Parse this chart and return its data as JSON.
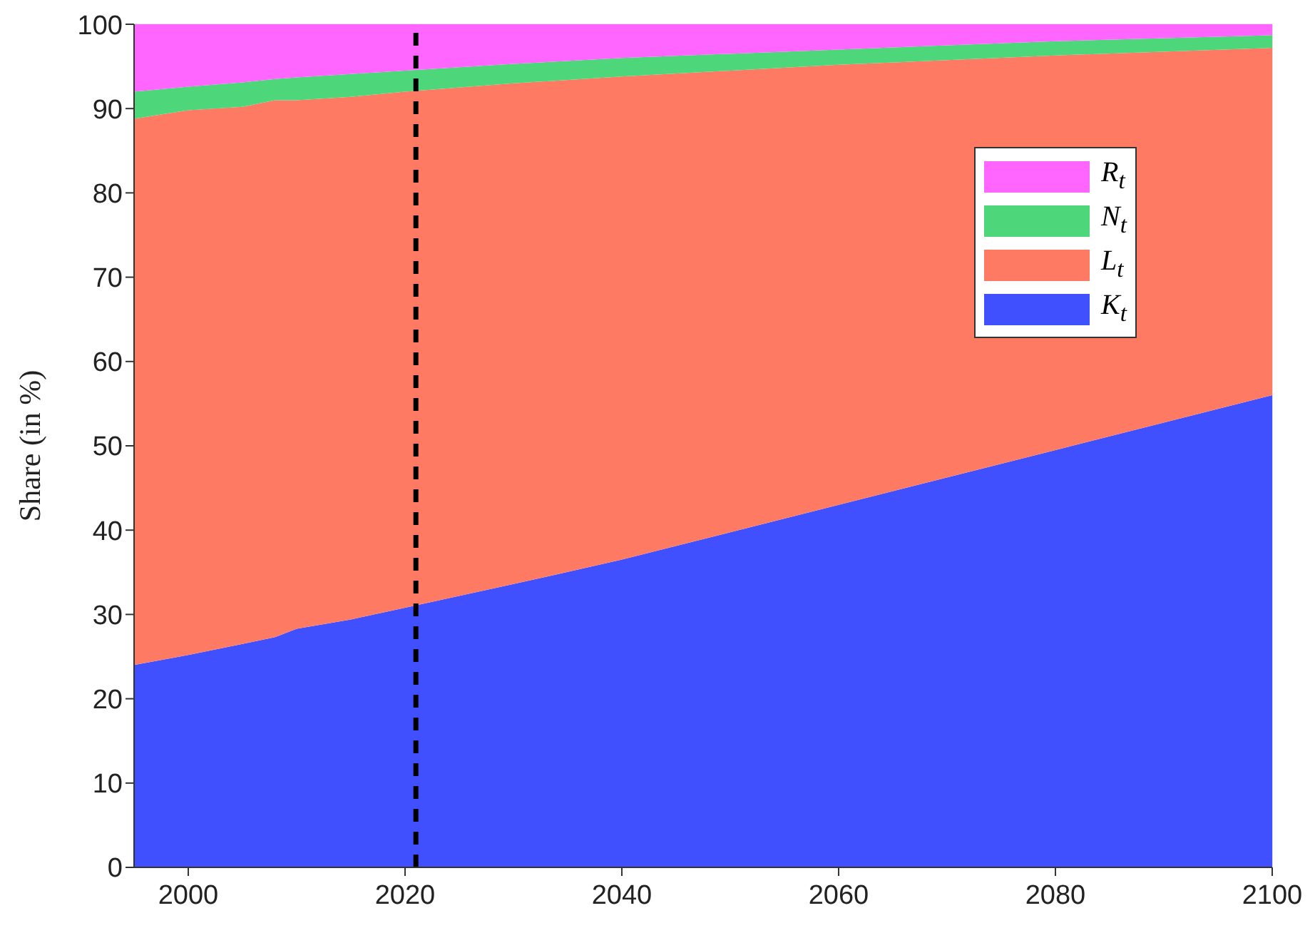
{
  "chart_data": {
    "type": "area",
    "ylabel": "Share (in %)",
    "stacked": true,
    "x": [
      1995,
      2000,
      2005,
      2008,
      2010,
      2015,
      2020,
      2030,
      2040,
      2060,
      2080,
      2100
    ],
    "series": [
      {
        "name": "K$_{t}$",
        "color": "#4050ff",
        "values": [
          24,
          25.2,
          26.5,
          27.3,
          28.3,
          29.4,
          30.8,
          33.6,
          36.5,
          43,
          49.5,
          56
        ]
      },
      {
        "name": "L$_{t}$",
        "color": "#ff7a63",
        "values": [
          64.8,
          64.6,
          63.7,
          63.7,
          62.7,
          62,
          61.2,
          59.4,
          57.3,
          52.2,
          46.8,
          41.2
        ]
      },
      {
        "name": "N$_{t}$",
        "color": "#4dd67a",
        "values": [
          3.2,
          2.8,
          2.9,
          2.5,
          2.7,
          2.7,
          2.5,
          2.3,
          2.2,
          1.8,
          1.7,
          1.5
        ]
      },
      {
        "name": "R$_{t}$",
        "color": "#ff66ff",
        "values": [
          8,
          7.4,
          6.9,
          6.5,
          6.3,
          5.9,
          5.5,
          4.7,
          4,
          3,
          2,
          1.3
        ]
      }
    ],
    "xlim": [
      1995,
      2100
    ],
    "xticks": [
      2000,
      2020,
      2040,
      2060,
      2080,
      2100
    ],
    "ylim": [
      0,
      100
    ],
    "yticks": [
      0,
      10,
      20,
      30,
      40,
      50,
      60,
      70,
      80,
      90,
      100
    ],
    "ref_lines": [
      {
        "axis": "x",
        "value": 2021,
        "color": "#000000",
        "line_style": "dashed"
      }
    ],
    "grid": true,
    "legend": "right"
  }
}
